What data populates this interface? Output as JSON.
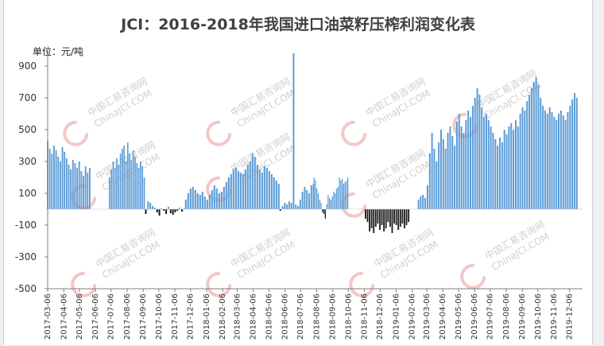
{
  "chart_data": {
    "type": "bar",
    "title": "JCI：2016-2018年我国进口油菜籽压榨利润变化表",
    "unit_label": "单位：元/吨",
    "ylim": [
      -500,
      1000
    ],
    "y_ticks": [
      900,
      700,
      500,
      300,
      100,
      -100,
      -300,
      -500
    ],
    "x_tick_labels": [
      "2017-03-06",
      "2017-04-06",
      "2017-05-06",
      "2017-06-06",
      "2017-07-06",
      "2017-08-06",
      "2017-09-06",
      "2017-10-06",
      "2017-11-06",
      "2017-12-06",
      "2018-01-06",
      "2018-02-06",
      "2018-03-06",
      "2018-04-06",
      "2018-05-06",
      "2018-06-06",
      "2018-07-06",
      "2018-08-06",
      "2018-09-06",
      "2018-10-06",
      "2018-11-06",
      "2018-12-06",
      "2019-01-06",
      "2019-02-06",
      "2019-03-06",
      "2019-04-06",
      "2019-05-06",
      "2019-06-06",
      "2019-07-06",
      "2019-08-06",
      "2019-09-06",
      "2019-10-06",
      "2019-11-06",
      "2019-12-06"
    ],
    "series_segments": [
      {
        "from": "2017-03-06",
        "to": "2017-05-26",
        "values": [
          430,
          380,
          350,
          400,
          370,
          330,
          300,
          390,
          360,
          320,
          280,
          250,
          310,
          290,
          260,
          300,
          240,
          210,
          270,
          230,
          260
        ]
      },
      {
        "from": "2017-07-03",
        "to": "2017-09-08",
        "values": [
          200,
          250,
          300,
          260,
          320,
          280,
          350,
          380,
          400,
          300,
          420,
          350,
          310,
          370,
          330,
          290,
          260,
          300,
          270,
          200
        ]
      },
      {
        "from": "2017-09-11",
        "to": "2017-11-24",
        "values": [
          -30,
          50,
          40,
          20,
          10,
          -20,
          -40,
          5,
          -10,
          -30,
          15,
          -25,
          -35,
          -20,
          -10,
          10,
          -15,
          5
        ]
      },
      {
        "from": "2017-11-27",
        "to": "2018-05-25",
        "values": [
          60,
          100,
          130,
          140,
          120,
          100,
          90,
          110,
          80,
          60,
          90,
          120,
          150,
          130,
          100,
          110,
          140,
          170,
          200,
          220,
          250,
          260,
          240,
          230,
          220,
          250,
          280,
          300,
          350,
          330,
          280,
          250,
          230,
          270,
          260,
          240,
          220,
          200,
          180,
          160
        ]
      },
      {
        "from": "2018-05-28",
        "to": "2018-07-31",
        "values": [
          -10,
          20,
          40,
          30,
          50,
          40,
          980,
          30,
          20,
          60,
          110,
          140,
          120,
          100,
          150,
          160
        ]
      },
      {
        "from": "2018-08-01",
        "to": "2018-10-05",
        "values": [
          200,
          180,
          130,
          100,
          60,
          40,
          -20,
          -30,
          -60,
          30,
          90,
          70,
          60,
          80,
          110,
          100,
          130,
          140,
          200,
          180,
          190,
          160,
          170,
          180,
          200
        ]
      },
      {
        "from": "2018-11-08",
        "to": "2019-01-30",
        "values": [
          -60,
          -80,
          -140,
          -120,
          -150,
          -110,
          -90,
          -130,
          -100,
          -140,
          -120,
          -80,
          -110,
          -150,
          -90,
          -100,
          -130,
          -110,
          -90,
          -120,
          -100,
          -80
        ]
      },
      {
        "from": "2019-02-18",
        "to": "2019-12-20",
        "values": [
          60,
          80,
          90,
          70,
          150,
          350,
          480,
          380,
          300,
          420,
          500,
          440,
          380,
          480,
          520,
          460,
          400,
          550,
          600,
          520,
          480,
          560,
          620,
          580,
          650,
          700,
          760,
          720,
          640,
          580,
          600,
          560,
          520,
          480,
          440,
          400,
          450,
          420,
          500,
          470,
          520,
          540,
          500,
          560,
          520,
          600,
          640,
          620,
          680,
          720,
          760,
          800,
          830,
          780,
          700,
          650,
          620,
          600,
          640,
          610,
          580,
          560,
          600,
          620,
          590,
          560,
          610,
          650,
          690,
          730,
          700
        ]
      }
    ],
    "watermark": [
      "中国汇易咨询网",
      "ChinaJCI.COM"
    ],
    "bar_color": "#5b9bd5",
    "negative_bar_color": "#1a1a1a"
  }
}
